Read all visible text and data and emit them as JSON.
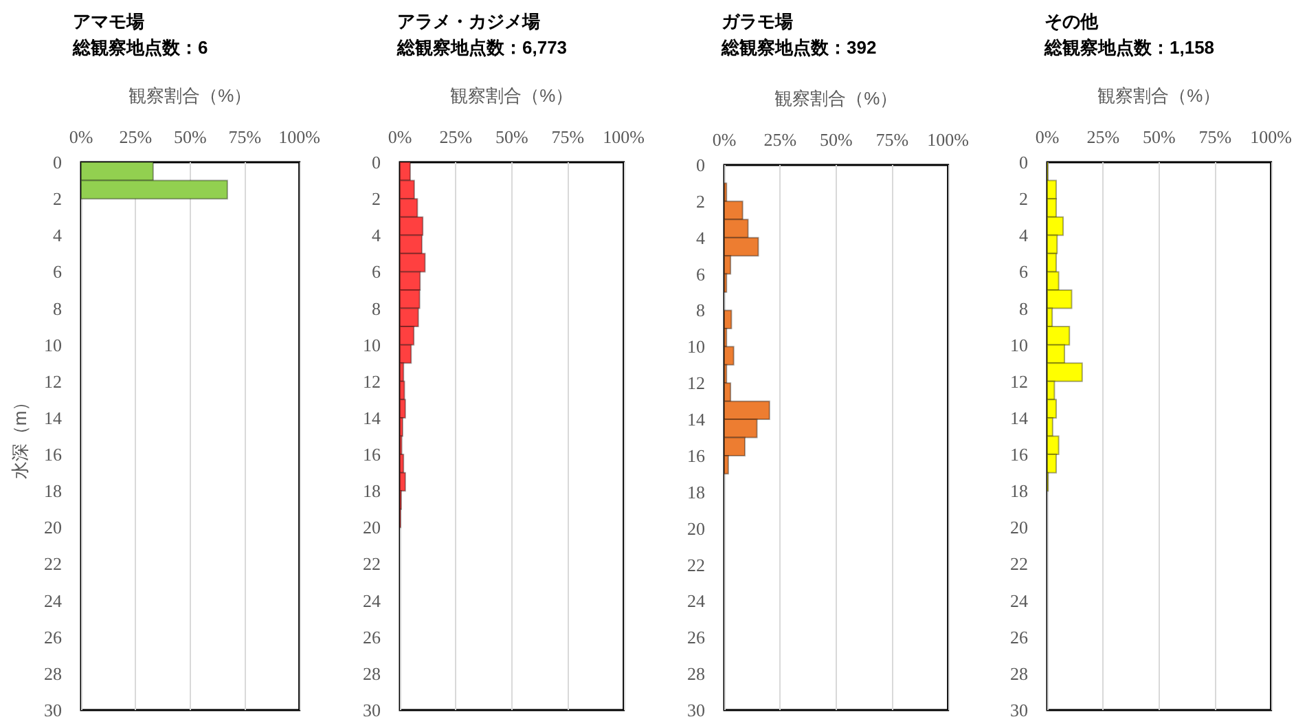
{
  "chart_data": [
    {
      "type": "histogram",
      "orientation": "horizontal",
      "title": "アマモ場",
      "subtitle": "総観察地点数：6",
      "xlabel": "観察割合（%）",
      "ylabel": "水深（m）",
      "bins": [
        0,
        1,
        2
      ],
      "values": [
        33,
        67
      ],
      "color": "#92d050",
      "xlim": [
        0,
        100
      ],
      "xticks": [
        {
          "value": 0,
          "label": "0%"
        },
        {
          "value": 25,
          "label": "25%"
        },
        {
          "value": 50,
          "label": "50%"
        },
        {
          "value": 75,
          "label": "75%"
        },
        {
          "value": 100,
          "label": "100%"
        }
      ],
      "ylim": [
        30,
        0
      ],
      "yticks": [
        0,
        2,
        4,
        6,
        8,
        10,
        12,
        14,
        16,
        18,
        20,
        22,
        24,
        26,
        28,
        30
      ],
      "grid": "x"
    },
    {
      "type": "histogram",
      "orientation": "horizontal",
      "title": "アラメ・カジメ場",
      "subtitle": "総観察地点数：6,773",
      "xlabel": "観察割合（%）",
      "bins": [
        0,
        1,
        2,
        3,
        4,
        5,
        6,
        7,
        8,
        9,
        10,
        11,
        12,
        13,
        14,
        15,
        16,
        17,
        18,
        19,
        20
      ],
      "values": [
        4.6,
        6.4,
        7.8,
        10.2,
        9.8,
        11.2,
        9,
        8.8,
        8.2,
        6.2,
        5,
        1.6,
        2,
        2.4,
        1.2,
        0.8,
        1.6,
        2.4,
        0.6,
        0.3
      ],
      "color": "#ff4040",
      "xlim": [
        0,
        100
      ],
      "xticks": [
        {
          "value": 0,
          "label": "0%"
        },
        {
          "value": 25,
          "label": "25%"
        },
        {
          "value": 50,
          "label": "50%"
        },
        {
          "value": 75,
          "label": "75%"
        },
        {
          "value": 100,
          "label": "100%"
        }
      ],
      "ylim": [
        30,
        0
      ],
      "yticks": [
        0,
        2,
        4,
        6,
        8,
        10,
        12,
        14,
        16,
        18,
        20,
        22,
        24,
        26,
        28,
        30
      ],
      "grid": "x"
    },
    {
      "type": "histogram",
      "orientation": "horizontal",
      "title": "ガラモ場",
      "subtitle": "総観察地点数：392",
      "xlabel": "観察割合（%）",
      "bins": [
        0,
        1,
        2,
        3,
        4,
        5,
        6,
        7,
        8,
        9,
        10,
        11,
        12,
        13,
        14,
        15,
        16,
        17
      ],
      "values": [
        0,
        1,
        8.2,
        10.6,
        15.2,
        2.8,
        1,
        0,
        3.2,
        1,
        4.2,
        1,
        2.8,
        20.2,
        14.6,
        9.2,
        1.8
      ],
      "color": "#ed7d31",
      "xlim": [
        0,
        100
      ],
      "xticks": [
        {
          "value": 0,
          "label": "0%"
        },
        {
          "value": 25,
          "label": "25%"
        },
        {
          "value": 50,
          "label": "50%"
        },
        {
          "value": 75,
          "label": "75%"
        },
        {
          "value": 100,
          "label": "100%"
        }
      ],
      "ylim": [
        30,
        0
      ],
      "yticks": [
        0,
        2,
        4,
        6,
        8,
        10,
        12,
        14,
        16,
        18,
        20,
        22,
        24,
        26,
        28,
        30
      ],
      "grid": "x"
    },
    {
      "type": "histogram",
      "orientation": "horizontal",
      "title": "その他",
      "subtitle": "総観察地点数：1,158",
      "xlabel": "観察割合（%）",
      "bins": [
        0,
        1,
        2,
        3,
        4,
        5,
        6,
        7,
        8,
        9,
        10,
        11,
        12,
        13,
        14,
        15,
        16,
        17,
        18
      ],
      "values": [
        0.3,
        4,
        4,
        7.1,
        4.4,
        4,
        5.1,
        10.9,
        2.2,
        9.9,
        7.7,
        15.6,
        3.2,
        4,
        2.4,
        5.1,
        4,
        0.4
      ],
      "color": "#ffff00",
      "xlim": [
        0,
        100
      ],
      "xticks": [
        {
          "value": 0,
          "label": "0%"
        },
        {
          "value": 25,
          "label": "25%"
        },
        {
          "value": 50,
          "label": "50%"
        },
        {
          "value": 75,
          "label": "75%"
        },
        {
          "value": 100,
          "label": "100%"
        }
      ],
      "ylim": [
        30,
        0
      ],
      "yticks": [
        0,
        2,
        4,
        6,
        8,
        10,
        12,
        14,
        16,
        18,
        20,
        22,
        24,
        26,
        28,
        30
      ],
      "grid": "x"
    }
  ]
}
